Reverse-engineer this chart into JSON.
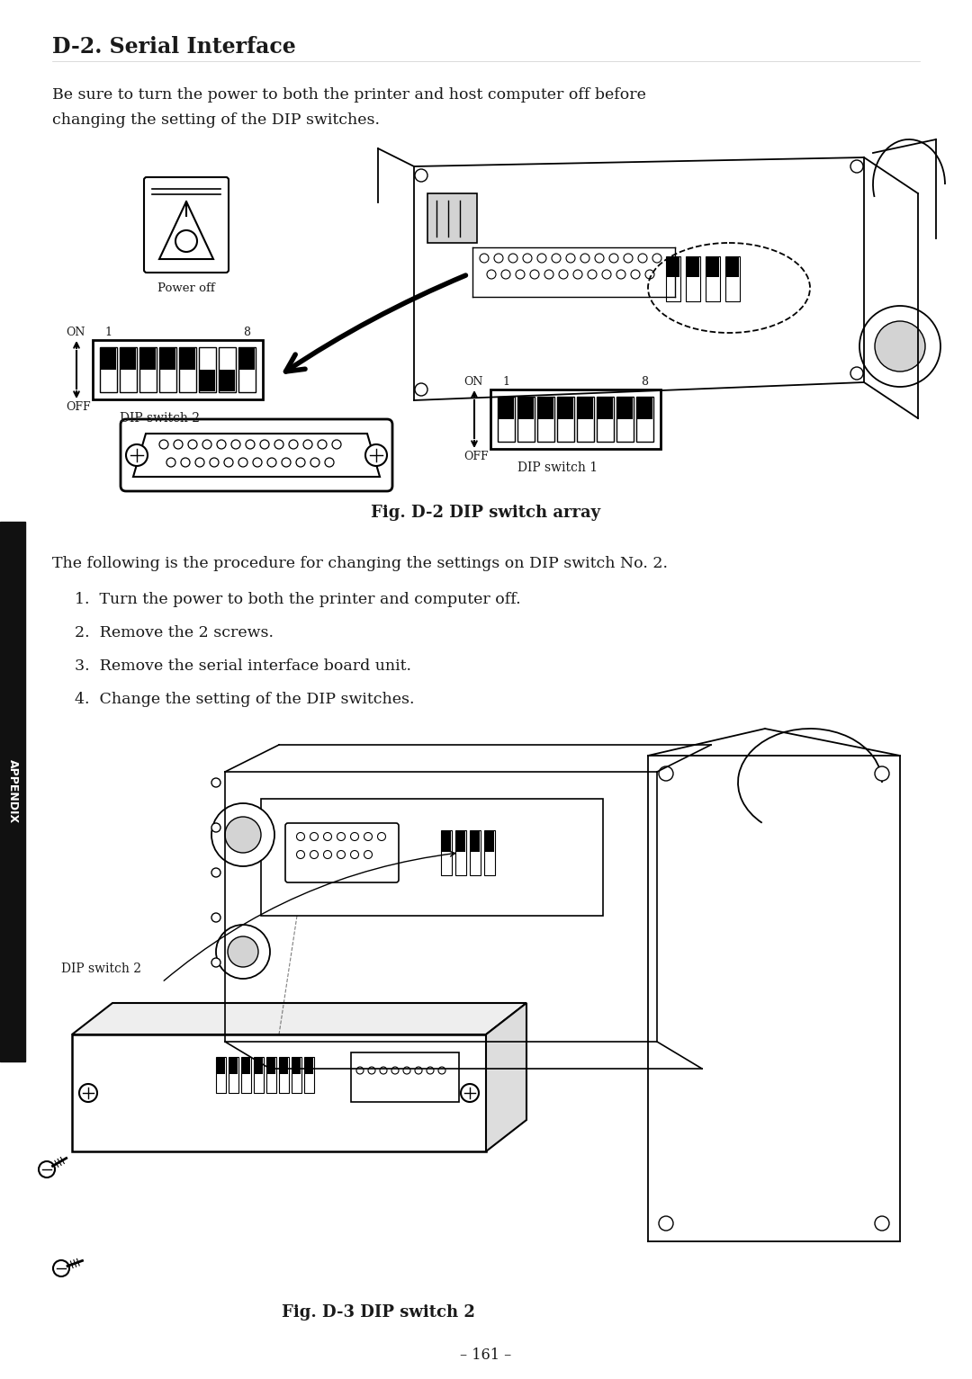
{
  "title": "D-2. Serial Interface",
  "body_line1": "Be sure to turn the power to both the printer and host computer off before",
  "body_line2": "changing the setting of the DIP switches.",
  "fig_caption_1": "Fig. D-2 DIP switch array",
  "fig_caption_2": "Fig. D-3 DIP switch 2",
  "page_number": "– 161 –",
  "procedure_intro": "The following is the procedure for changing the settings on DIP switch No. 2.",
  "steps": [
    "Turn the power to both the printer and computer off.",
    "Remove the 2 screws.",
    "Remove the serial interface board unit.",
    "Change the setting of the DIP switches."
  ],
  "dip2_label": "DIP switch 2",
  "dip1_label": "DIP switch 1",
  "dip_switch2_label_fig3": "DIP switch 2",
  "power_off_label": "Power off",
  "on_label": "ON",
  "off_label": "OFF",
  "appendix_label": "APPENDIX",
  "bg_color": "#ffffff",
  "text_color": "#1a1a1a",
  "sidebar_bg": "#111111",
  "sidebar_text": "#ffffff",
  "sw2_on": [
    true,
    true,
    true,
    true,
    true,
    false,
    false,
    true
  ],
  "sw1_on": [
    true,
    true,
    true,
    true,
    true,
    true,
    true,
    true
  ]
}
